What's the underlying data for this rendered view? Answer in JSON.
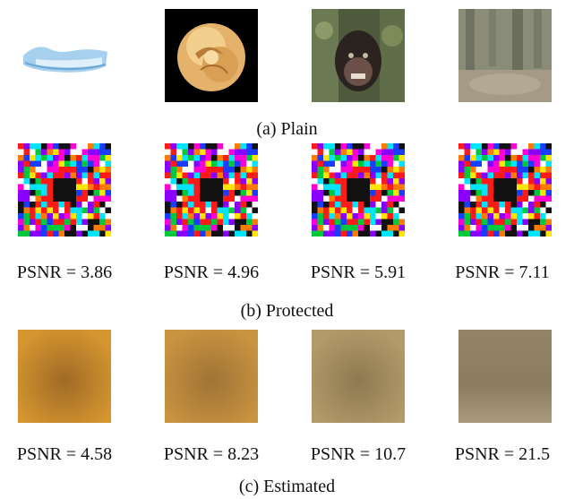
{
  "figure": {
    "row_a": {
      "caption": "(a) Plain",
      "images": [
        {
          "name": "plain-image-1",
          "depiction": "light blue object on white background"
        },
        {
          "name": "plain-image-2",
          "depiction": "yellow-orange rose on black background"
        },
        {
          "name": "plain-image-3",
          "depiction": "chimpanzee face in foliage"
        },
        {
          "name": "plain-image-4",
          "depiction": "blurry forest scene"
        }
      ]
    },
    "row_b": {
      "caption": "(b) Protected",
      "psnr_labels": [
        "PSNR = 3.86",
        "PSNR = 4.96",
        "PSNR = 5.91",
        "PSNR = 7.11"
      ]
    },
    "row_c": {
      "caption": "(c) Estimated",
      "psnr_labels": [
        "PSNR = 4.58",
        "PSNR = 8.23",
        "PSNR = 10.7",
        "PSNR = 21.5"
      ]
    },
    "colors": {
      "estimated_1": "#c88a2e",
      "estimated_2": "#b98a3c",
      "estimated_3": "#a78f62",
      "estimated_4": "#9c8e71"
    }
  }
}
